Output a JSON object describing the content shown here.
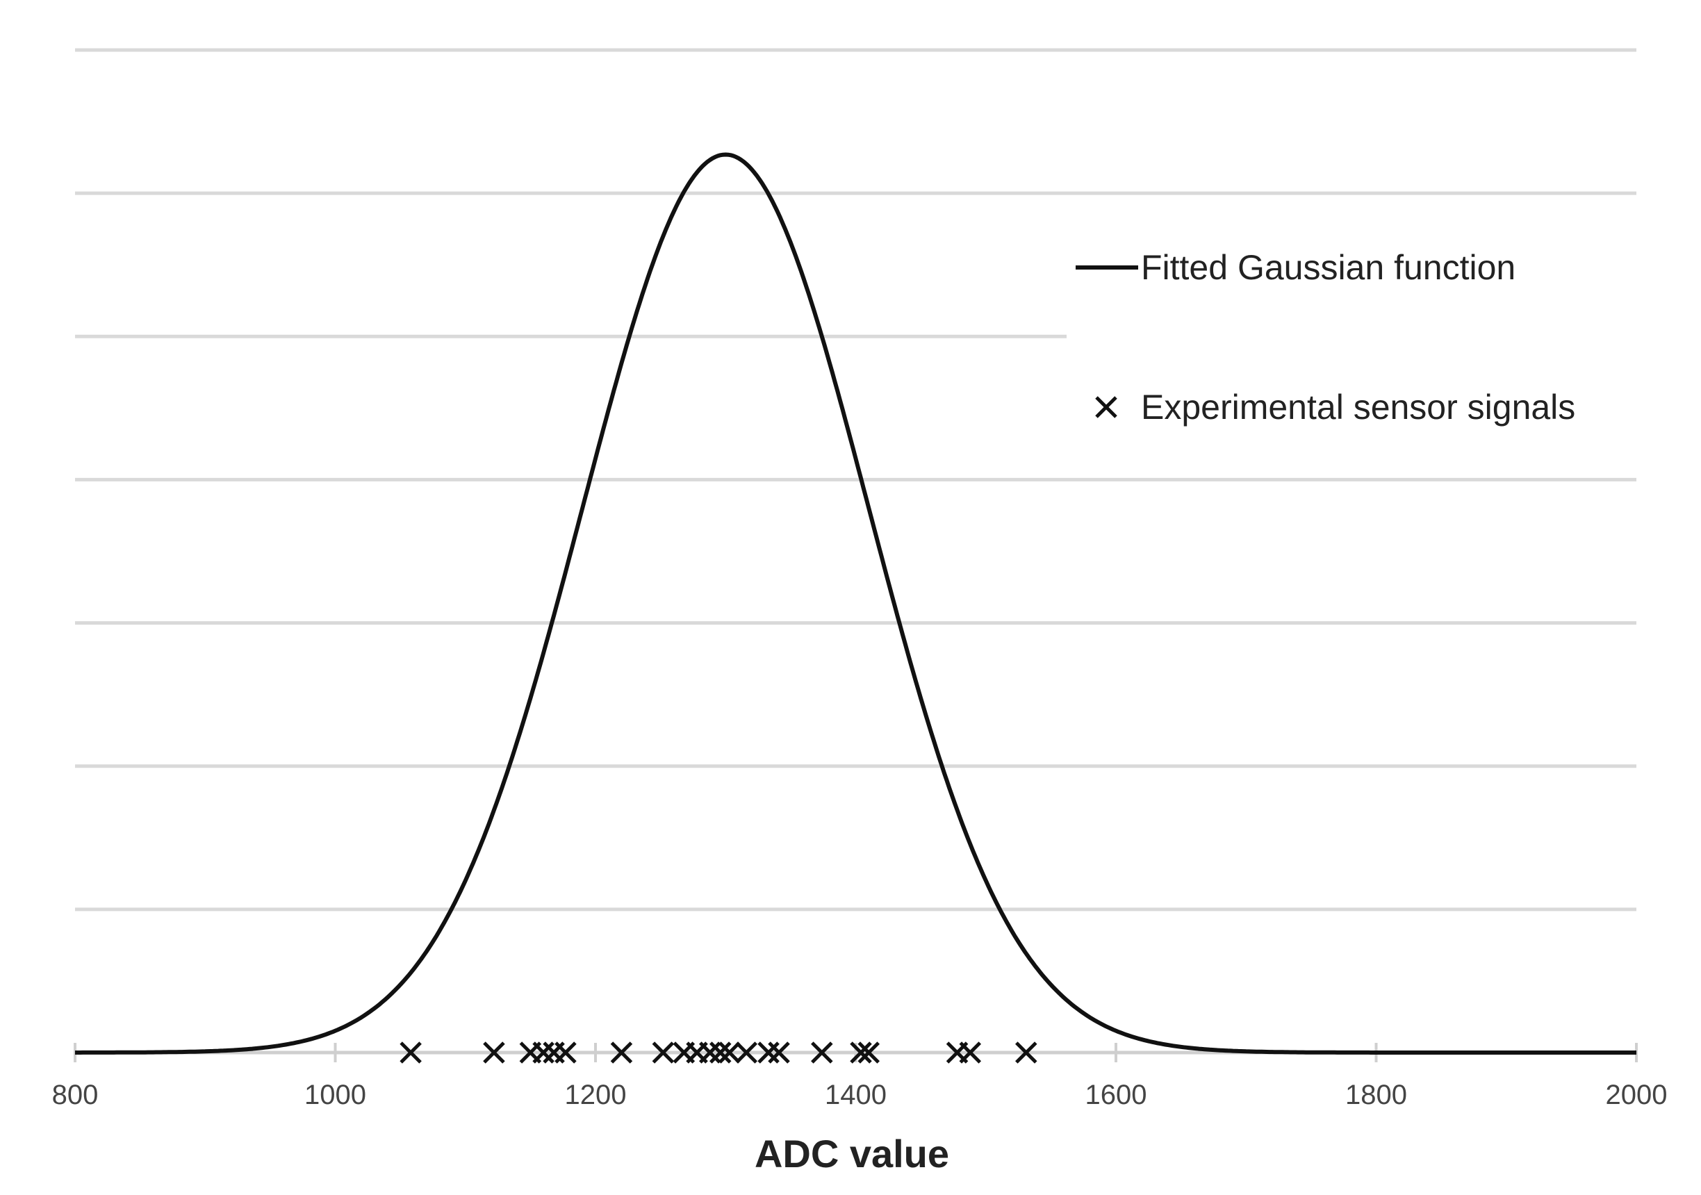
{
  "chart_data": {
    "type": "line",
    "title": "",
    "xlabel": "ADC value",
    "ylabel": "",
    "xlim": [
      800,
      2000
    ],
    "ylim": [
      0,
      7
    ],
    "x_ticks": [
      "800",
      "1000",
      "1200",
      "1400",
      "1600",
      "1800",
      "2000"
    ],
    "y_tick_labels_shown": false,
    "grid": true,
    "legend_position": "right",
    "series": [
      {
        "name": "Fitted Gaussian function",
        "kind": "curve",
        "color": "#111111",
        "mean": 1300,
        "std_dev": 110,
        "peak": 6.27
      },
      {
        "name": "Experimental sensor signals",
        "kind": "scatter",
        "marker": "x",
        "color": "#111111",
        "x": [
          1058,
          1122,
          1150,
          1160,
          1168,
          1177,
          1220,
          1252,
          1268,
          1278,
          1288,
          1296,
          1303,
          1316,
          1333,
          1341,
          1374,
          1404,
          1410,
          1478,
          1488,
          1531
        ],
        "y": [
          0,
          0,
          0,
          0,
          0,
          0,
          0,
          0,
          0,
          0,
          0,
          0,
          0,
          0,
          0,
          0,
          0,
          0,
          0,
          0,
          0,
          0
        ]
      }
    ]
  }
}
